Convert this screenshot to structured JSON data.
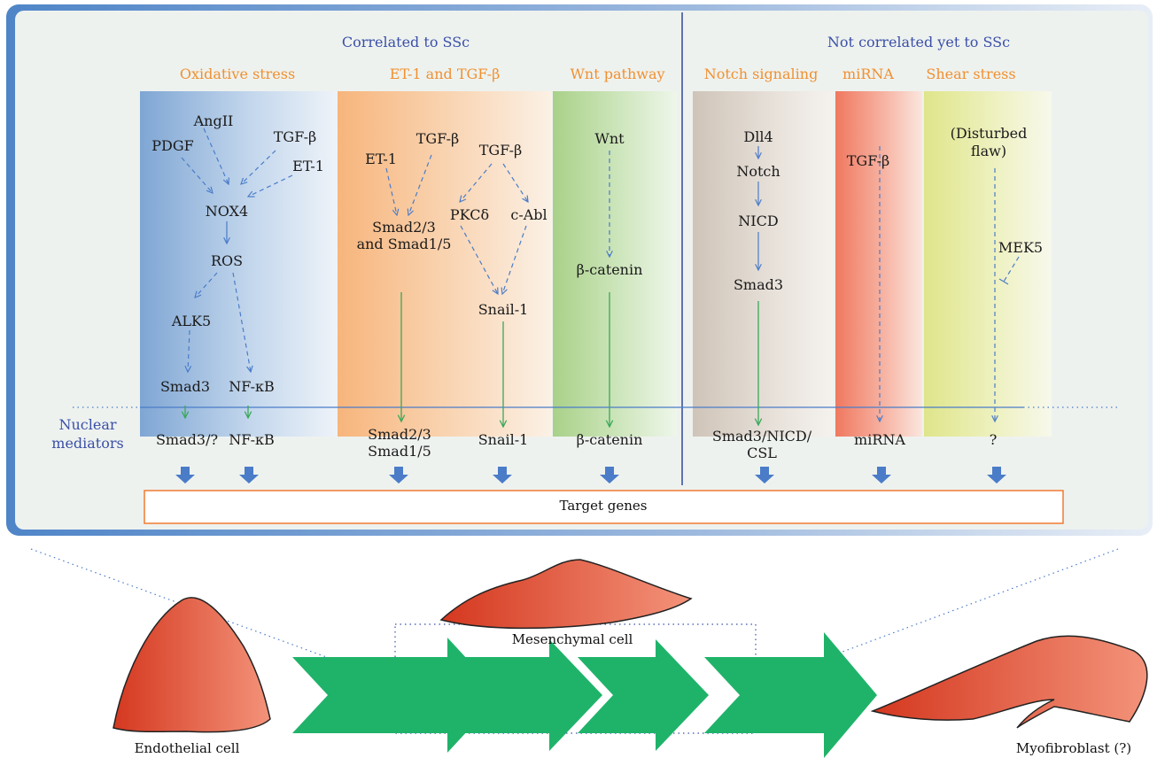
{
  "headers": {
    "correlated": "Correlated to SSc",
    "not_correlated": "Not correlated yet to SSc"
  },
  "pathways": {
    "oxidative": "Oxidative stress",
    "et1": "ET-1 and TGF-β",
    "wnt": "Wnt pathway",
    "notch": "Notch signaling",
    "mirna": "miRNA",
    "shear": "Shear stress"
  },
  "nodes": {
    "angII": "AngII",
    "tgfb_ox": "TGF-β",
    "pdgf": "PDGF",
    "et1_ox": "ET-1",
    "nox4": "NOX4",
    "ros": "ROS",
    "alk5": "ALK5",
    "smad3_ox": "Smad3",
    "nfkb_ox": "NF-κB",
    "et1_b": "ET-1",
    "tgfb_b1": "TGF-β",
    "tgfb_b2": "TGF-β",
    "smad23_l1": "Smad2/3",
    "smad23_l2": "and Smad1/5",
    "pkcd": "PKCδ",
    "cabl": "c-Abl",
    "snail": "Snail-1",
    "wnt": "Wnt",
    "bcat": "β-catenin",
    "dll4": "Dll4",
    "notch": "Notch",
    "nicd": "NICD",
    "smad3_n": "Smad3",
    "tgfb_mi": "TGF-β",
    "disturbed_l1": "(Disturbed",
    "disturbed_l2": "flaw)",
    "mek5": "MEK5"
  },
  "nuclear": {
    "label_l1": "Nuclear",
    "label_l2": "mediators",
    "smad3q": "Smad3/?",
    "nfkb": "NF-κB",
    "smad_l1": "Smad2/3",
    "smad_l2": "Smad1/5",
    "snail": "Snail-1",
    "bcat": "β-catenin",
    "notch_l1": "Smad3/NICD/",
    "notch_l2": "CSL",
    "mirna": "miRNA",
    "unknown": "?"
  },
  "target_genes": "Target genes",
  "cells": {
    "endothelial": "Endothelial cell",
    "mesenchymal": "Mesenchymal cell",
    "myofibroblast": "Myofibroblast (?)"
  },
  "colors": {
    "header_blue": "#3a4fa8",
    "pathway_orange": "#f09030",
    "arrow_blue": "#4a7cc8",
    "arrow_green": "#3aa85a",
    "cell_red": "#d9442a",
    "transition_green": "#1fb36a",
    "target_border": "#f07a30"
  }
}
